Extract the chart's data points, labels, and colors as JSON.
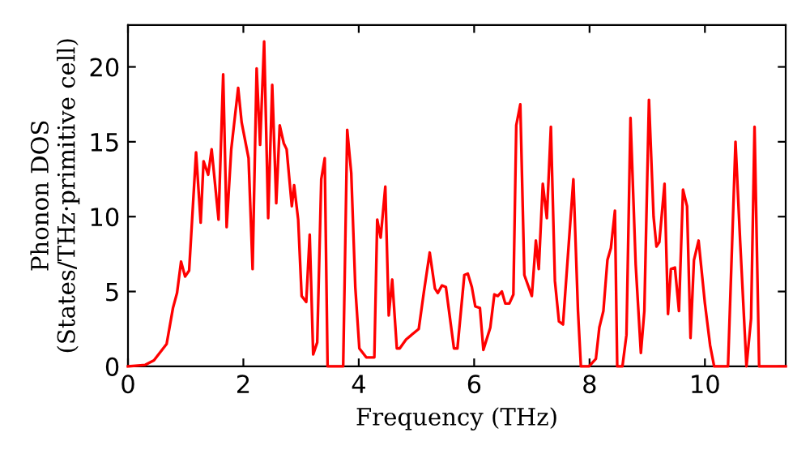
{
  "chart_data": {
    "type": "line",
    "xlabel": "Frequency (THz)",
    "ylabel": "Phonon DOS\n(States/THz·primitive cell)",
    "xlim": [
      0,
      11.4
    ],
    "ylim": [
      0,
      22.8
    ],
    "xticks": [
      0,
      2,
      4,
      6,
      8,
      10
    ],
    "yticks": [
      0,
      5,
      10,
      15,
      20
    ],
    "grid": false,
    "legend": false,
    "marker": "none",
    "line_style": "solid",
    "series": [
      {
        "color": "#ff0000",
        "x": [
          0,
          0.3,
          0.45,
          0.67,
          0.78,
          0.85,
          0.92,
          0.99,
          1.06,
          1.18,
          1.26,
          1.31,
          1.39,
          1.45,
          1.57,
          1.65,
          1.71,
          1.79,
          1.91,
          1.97,
          2.09,
          2.16,
          2.23,
          2.29,
          2.36,
          2.43,
          2.5,
          2.57,
          2.63,
          2.7,
          2.75,
          2.84,
          2.88,
          2.95,
          3.01,
          3.09,
          3.15,
          3.21,
          3.28,
          3.35,
          3.41,
          3.46,
          3.73,
          3.8,
          3.87,
          3.94,
          4.01,
          4.13,
          4.27,
          4.32,
          4.38,
          4.46,
          4.52,
          4.58,
          4.66,
          4.71,
          4.82,
          5.04,
          5.13,
          5.23,
          5.32,
          5.37,
          5.44,
          5.51,
          5.65,
          5.71,
          5.83,
          5.89,
          5.96,
          6.02,
          6.1,
          6.16,
          6.28,
          6.35,
          6.41,
          6.48,
          6.54,
          6.61,
          6.68,
          6.73,
          6.8,
          6.87,
          7.0,
          7.07,
          7.12,
          7.19,
          7.26,
          7.33,
          7.4,
          7.47,
          7.54,
          7.72,
          7.8,
          7.85,
          7.99,
          8.11,
          8.17,
          8.24,
          8.31,
          8.37,
          8.44,
          8.48,
          8.57,
          8.64,
          8.71,
          8.8,
          8.89,
          8.95,
          9.03,
          9.11,
          9.16,
          9.21,
          9.3,
          9.36,
          9.41,
          9.48,
          9.55,
          9.62,
          9.69,
          9.75,
          9.81,
          9.89,
          10.0,
          10.09,
          10.16,
          10.4,
          10.53,
          10.61,
          10.72,
          10.8,
          10.86,
          10.94,
          11.4
        ],
        "values": [
          0,
          0.1,
          0.4,
          1.5,
          3.9,
          4.9,
          7.0,
          6.0,
          6.4,
          14.3,
          9.6,
          13.7,
          12.8,
          14.5,
          9.8,
          19.5,
          9.3,
          14.5,
          18.6,
          16.3,
          13.9,
          6.5,
          19.9,
          14.8,
          21.7,
          9.9,
          18.8,
          10.9,
          16.1,
          14.9,
          14.5,
          10.7,
          12.1,
          9.8,
          4.7,
          4.3,
          8.8,
          0.8,
          1.6,
          12.5,
          13.9,
          0,
          0,
          15.8,
          12.9,
          5.3,
          1.2,
          0.6,
          0.6,
          9.8,
          8.6,
          12.0,
          3.4,
          5.8,
          1.2,
          1.2,
          1.8,
          2.5,
          5.0,
          7.6,
          5.2,
          4.9,
          5.4,
          5.3,
          1.2,
          1.2,
          6.1,
          6.2,
          5.3,
          4.0,
          3.9,
          1.1,
          2.6,
          4.8,
          4.7,
          5.0,
          4.2,
          4.2,
          4.8,
          16.1,
          17.5,
          6.1,
          4.7,
          8.4,
          6.5,
          12.2,
          9.9,
          16.0,
          5.7,
          3.0,
          2.8,
          12.5,
          3.7,
          0,
          0,
          0.5,
          2.6,
          3.7,
          7.1,
          7.9,
          10.4,
          0,
          0,
          2.1,
          16.6,
          6.8,
          0.9,
          3.7,
          17.8,
          10.0,
          8.0,
          8.3,
          12.2,
          3.5,
          6.5,
          6.6,
          3.7,
          11.8,
          10.7,
          1.9,
          7.1,
          8.4,
          4.2,
          1.4,
          0,
          0,
          15.0,
          8.4,
          0,
          3.2,
          16.0,
          0,
          0
        ]
      }
    ]
  }
}
